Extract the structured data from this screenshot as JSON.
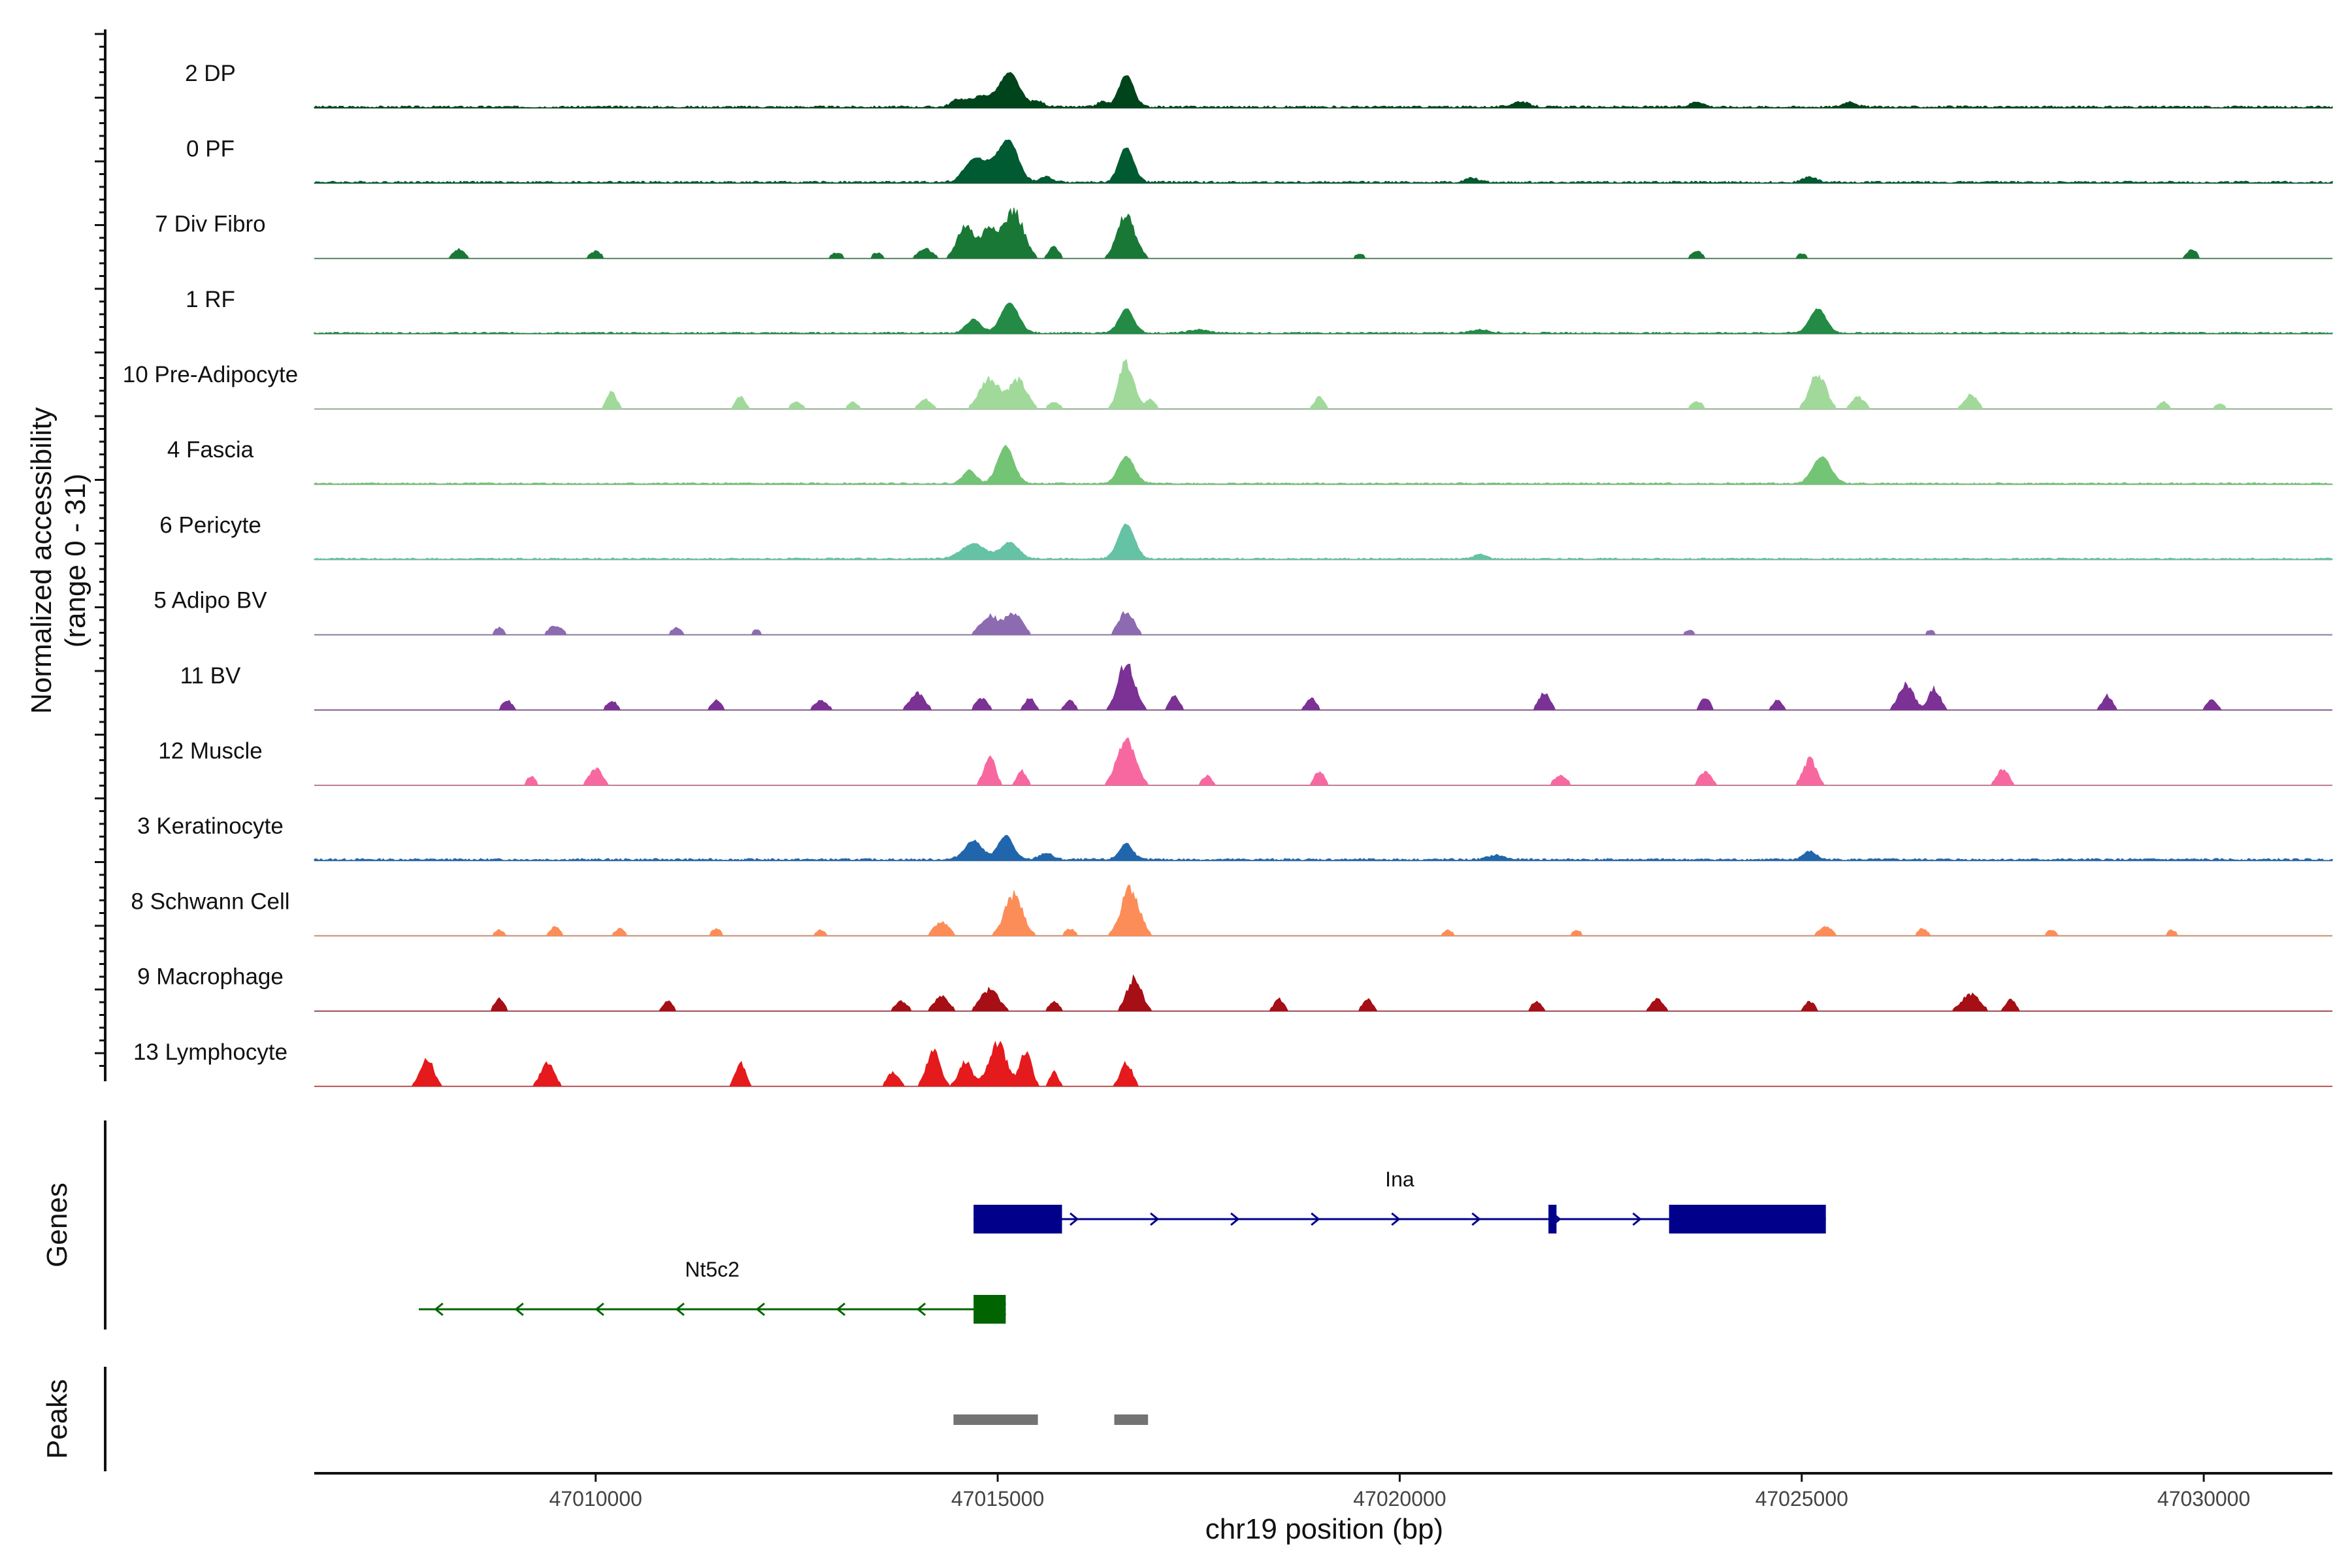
{
  "chart_data": {
    "type": "coverage",
    "chromosome": "chr19",
    "xlabel": "chr19 position (bp)",
    "ylabel": [
      "Normalized accessibility",
      "(range 0 - 31)"
    ],
    "xlim": [
      47006500,
      47031600
    ],
    "xticks": [
      47010000,
      47015000,
      47020000,
      47025000,
      47030000
    ],
    "xtick_labels": [
      "47010000",
      "47015000",
      "47020000",
      "47025000",
      "47030000"
    ],
    "ylim": [
      0,
      31
    ],
    "tracks": [
      {
        "name": "2 DP",
        "color": "#00441b",
        "dense": true,
        "noise": 0.04,
        "peaks": [
          [
            47014500,
            80,
            0.12
          ],
          [
            47014800,
            150,
            0.2
          ],
          [
            47015150,
            120,
            0.62
          ],
          [
            47015500,
            80,
            0.1
          ],
          [
            47016300,
            60,
            0.1
          ],
          [
            47016600,
            90,
            0.6
          ],
          [
            47021500,
            100,
            0.1
          ],
          [
            47023700,
            80,
            0.1
          ],
          [
            47025600,
            80,
            0.1
          ]
        ]
      },
      {
        "name": "0 PF",
        "color": "#005a32",
        "dense": true,
        "noise": 0.04,
        "peaks": [
          [
            47014700,
            120,
            0.4
          ],
          [
            47014950,
            120,
            0.3
          ],
          [
            47015150,
            110,
            0.7
          ],
          [
            47015600,
            80,
            0.1
          ],
          [
            47016600,
            90,
            0.65
          ],
          [
            47020900,
            80,
            0.08
          ],
          [
            47025100,
            80,
            0.1
          ]
        ]
      },
      {
        "name": "7 Div Fibro",
        "color": "#1a7837",
        "dense": false,
        "noise": 0,
        "peaks": [
          [
            47008300,
            70,
            0.2
          ],
          [
            47010000,
            70,
            0.15
          ],
          [
            47013000,
            70,
            0.12
          ],
          [
            47013500,
            60,
            0.12
          ],
          [
            47014100,
            90,
            0.2
          ],
          [
            47014600,
            100,
            0.7
          ],
          [
            47014900,
            100,
            0.65
          ],
          [
            47015200,
            120,
            1.0
          ],
          [
            47015700,
            60,
            0.25
          ],
          [
            47016600,
            110,
            0.9
          ],
          [
            47019500,
            60,
            0.1
          ],
          [
            47023700,
            70,
            0.15
          ],
          [
            47025000,
            60,
            0.1
          ],
          [
            47029850,
            60,
            0.2
          ]
        ]
      },
      {
        "name": "1 RF",
        "color": "#238b45",
        "dense": true,
        "noise": 0.03,
        "peaks": [
          [
            47014700,
            90,
            0.25
          ],
          [
            47015150,
            110,
            0.55
          ],
          [
            47016600,
            90,
            0.45
          ],
          [
            47025200,
            100,
            0.45
          ],
          [
            47017500,
            120,
            0.06
          ],
          [
            47021000,
            120,
            0.06
          ]
        ]
      },
      {
        "name": "10 Pre-Adipocyte",
        "color": "#a1d99b",
        "dense": false,
        "noise": 0,
        "peaks": [
          [
            47010200,
            60,
            0.35
          ],
          [
            47011800,
            60,
            0.25
          ],
          [
            47012500,
            70,
            0.15
          ],
          [
            47013200,
            60,
            0.15
          ],
          [
            47014100,
            80,
            0.2
          ],
          [
            47014900,
            120,
            0.65
          ],
          [
            47015250,
            110,
            0.6
          ],
          [
            47015700,
            70,
            0.15
          ],
          [
            47016600,
            90,
            1.0
          ],
          [
            47016900,
            60,
            0.2
          ],
          [
            47019000,
            60,
            0.25
          ],
          [
            47023700,
            70,
            0.15
          ],
          [
            47025200,
            100,
            0.75
          ],
          [
            47025700,
            80,
            0.25
          ],
          [
            47027100,
            80,
            0.3
          ],
          [
            47029500,
            60,
            0.15
          ],
          [
            47030200,
            60,
            0.12
          ]
        ]
      },
      {
        "name": "4 Fascia",
        "color": "#74c476",
        "dense": true,
        "noise": 0.03,
        "peaks": [
          [
            47014650,
            80,
            0.25
          ],
          [
            47015100,
            100,
            0.7
          ],
          [
            47016600,
            100,
            0.5
          ],
          [
            47025250,
            110,
            0.5
          ]
        ]
      },
      {
        "name": "6 Pericyte",
        "color": "#66c2a4",
        "dense": true,
        "noise": 0.03,
        "peaks": [
          [
            47014700,
            150,
            0.28
          ],
          [
            47015150,
            110,
            0.3
          ],
          [
            47016600,
            100,
            0.65
          ],
          [
            47021000,
            80,
            0.08
          ]
        ]
      },
      {
        "name": "5 Adipo BV",
        "color": "#8c6bb1",
        "dense": false,
        "noise": 0,
        "peaks": [
          [
            47008800,
            60,
            0.15
          ],
          [
            47009500,
            80,
            0.2
          ],
          [
            47011000,
            60,
            0.15
          ],
          [
            47012000,
            60,
            0.1
          ],
          [
            47014900,
            110,
            0.4
          ],
          [
            47015200,
            100,
            0.45
          ],
          [
            47016600,
            90,
            0.5
          ],
          [
            47023600,
            60,
            0.1
          ],
          [
            47026600,
            60,
            0.1
          ]
        ]
      },
      {
        "name": "11 BV",
        "color": "#7b3294",
        "dense": false,
        "noise": 0,
        "peaks": [
          [
            47008900,
            60,
            0.2
          ],
          [
            47010200,
            60,
            0.2
          ],
          [
            47011500,
            60,
            0.2
          ],
          [
            47012800,
            80,
            0.2
          ],
          [
            47014000,
            90,
            0.35
          ],
          [
            47014800,
            70,
            0.25
          ],
          [
            47015400,
            60,
            0.25
          ],
          [
            47015900,
            60,
            0.2
          ],
          [
            47016600,
            100,
            1.0
          ],
          [
            47017200,
            60,
            0.3
          ],
          [
            47018900,
            60,
            0.25
          ],
          [
            47021800,
            70,
            0.35
          ],
          [
            47023800,
            60,
            0.25
          ],
          [
            47024700,
            60,
            0.2
          ],
          [
            47026300,
            90,
            0.55
          ],
          [
            47026650,
            70,
            0.45
          ],
          [
            47028800,
            60,
            0.3
          ],
          [
            47030100,
            60,
            0.25
          ]
        ]
      },
      {
        "name": "12 Muscle",
        "color": "#f768a1",
        "dense": false,
        "noise": 0,
        "peaks": [
          [
            47009200,
            50,
            0.2
          ],
          [
            47010000,
            80,
            0.35
          ],
          [
            47014900,
            70,
            0.6
          ],
          [
            47015300,
            60,
            0.3
          ],
          [
            47016600,
            110,
            1.0
          ],
          [
            47017600,
            60,
            0.2
          ],
          [
            47019000,
            60,
            0.3
          ],
          [
            47022000,
            80,
            0.2
          ],
          [
            47023800,
            70,
            0.3
          ],
          [
            47025100,
            80,
            0.55
          ],
          [
            47027500,
            70,
            0.35
          ]
        ]
      },
      {
        "name": "3 Keratinocyte",
        "color": "#2166ac",
        "dense": true,
        "noise": 0.04,
        "peaks": [
          [
            47014700,
            110,
            0.35
          ],
          [
            47015100,
            90,
            0.45
          ],
          [
            47015600,
            80,
            0.12
          ],
          [
            47016600,
            80,
            0.3
          ],
          [
            47021200,
            100,
            0.08
          ],
          [
            47025100,
            80,
            0.15
          ]
        ]
      },
      {
        "name": "8 Schwann Cell",
        "color": "#fc8d59",
        "dense": false,
        "noise": 0,
        "peaks": [
          [
            47008800,
            60,
            0.12
          ],
          [
            47009500,
            60,
            0.2
          ],
          [
            47010300,
            60,
            0.15
          ],
          [
            47011500,
            60,
            0.15
          ],
          [
            47012800,
            60,
            0.12
          ],
          [
            47014300,
            90,
            0.3
          ],
          [
            47015200,
            110,
            0.85
          ],
          [
            47015900,
            60,
            0.15
          ],
          [
            47016650,
            110,
            1.0
          ],
          [
            47020600,
            60,
            0.12
          ],
          [
            47022200,
            60,
            0.12
          ],
          [
            47025300,
            80,
            0.2
          ],
          [
            47026500,
            60,
            0.15
          ],
          [
            47028100,
            60,
            0.12
          ],
          [
            47029600,
            60,
            0.12
          ]
        ]
      },
      {
        "name": "9 Macrophage",
        "color": "#a50f15",
        "dense": false,
        "noise": 0,
        "peaks": [
          [
            47008800,
            60,
            0.25
          ],
          [
            47010900,
            60,
            0.2
          ],
          [
            47013800,
            80,
            0.2
          ],
          [
            47014300,
            90,
            0.3
          ],
          [
            47014900,
            110,
            0.45
          ],
          [
            47015700,
            60,
            0.2
          ],
          [
            47016700,
            90,
            0.7
          ],
          [
            47018500,
            60,
            0.25
          ],
          [
            47019600,
            60,
            0.25
          ],
          [
            47021700,
            60,
            0.2
          ],
          [
            47023200,
            70,
            0.25
          ],
          [
            47025100,
            60,
            0.2
          ],
          [
            47027100,
            110,
            0.35
          ],
          [
            47027600,
            60,
            0.25
          ]
        ]
      },
      {
        "name": "13 Lymphocyte",
        "color": "#e41a1c",
        "dense": false,
        "noise": 0,
        "peaks": [
          [
            47007900,
            80,
            0.6
          ],
          [
            47009400,
            80,
            0.5
          ],
          [
            47011800,
            60,
            0.5
          ],
          [
            47013700,
            70,
            0.3
          ],
          [
            47014200,
            80,
            0.8
          ],
          [
            47014600,
            80,
            0.5
          ],
          [
            47015000,
            110,
            0.9
          ],
          [
            47015350,
            70,
            0.7
          ],
          [
            47015700,
            50,
            0.3
          ],
          [
            47016600,
            70,
            0.5
          ]
        ]
      }
    ],
    "genes": [
      {
        "name": "Ina",
        "strand": "+",
        "color": "#00008b",
        "start": 47014700,
        "end": 47025300,
        "exons": [
          [
            47014700,
            47015800
          ],
          [
            47021850,
            47021950
          ],
          [
            47023350,
            47025300
          ]
        ]
      },
      {
        "name": "Nt5c2",
        "strand": "-",
        "color": "#006400",
        "start": 47007800,
        "end": 47015100,
        "exons": [
          [
            47014700,
            47015100
          ]
        ]
      }
    ],
    "peaks_regions": [
      [
        47014450,
        47015500
      ],
      [
        47016450,
        47016870
      ]
    ],
    "peaks_color": "#737373",
    "panel_labels": {
      "genes": "Genes",
      "peaks": "Peaks"
    }
  }
}
